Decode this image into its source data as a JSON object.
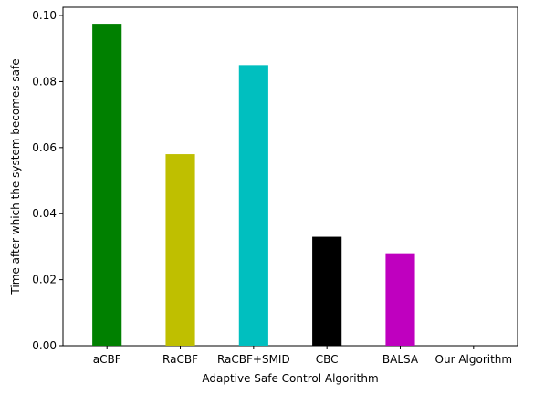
{
  "chart_data": {
    "type": "bar",
    "title": "",
    "xlabel": "Adaptive Safe Control Algorithm",
    "ylabel": "Time after which the system becomes safe",
    "categories": [
      "aCBF",
      "RaCBF",
      "RaCBF+SMID",
      "CBC",
      "BALSA",
      "Our Algorithm"
    ],
    "values": [
      0.0975,
      0.058,
      0.085,
      0.033,
      0.028,
      0.0
    ],
    "colors": [
      "#008000",
      "#bfbf00",
      "#00bfbf",
      "#000000",
      "#bf00bf",
      "#1f77b4"
    ],
    "ylim": [
      0,
      0.1025
    ],
    "yticks": [
      0.0,
      0.02,
      0.04,
      0.06,
      0.08,
      0.1
    ],
    "ytick_labels": [
      "0.00",
      "0.02",
      "0.04",
      "0.06",
      "0.08",
      "0.10"
    ],
    "grid": false,
    "legend": "none"
  }
}
